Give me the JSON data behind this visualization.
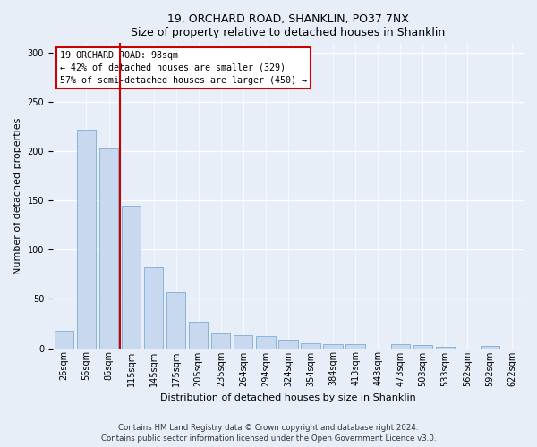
{
  "title1": "19, ORCHARD ROAD, SHANKLIN, PO37 7NX",
  "title2": "Size of property relative to detached houses in Shanklin",
  "xlabel": "Distribution of detached houses by size in Shanklin",
  "ylabel": "Number of detached properties",
  "categories": [
    "26sqm",
    "56sqm",
    "86sqm",
    "115sqm",
    "145sqm",
    "175sqm",
    "205sqm",
    "235sqm",
    "264sqm",
    "294sqm",
    "324sqm",
    "354sqm",
    "384sqm",
    "413sqm",
    "443sqm",
    "473sqm",
    "503sqm",
    "533sqm",
    "562sqm",
    "592sqm",
    "622sqm"
  ],
  "values": [
    18,
    222,
    203,
    145,
    82,
    57,
    27,
    15,
    13,
    12,
    9,
    5,
    4,
    4,
    0,
    4,
    3,
    1,
    0,
    2,
    0
  ],
  "bar_color": "#c8d8ee",
  "bar_edge_color": "#7aadd4",
  "vline_x": 2.5,
  "annotation_line1": "19 ORCHARD ROAD: 98sqm",
  "annotation_line2": "← 42% of detached houses are smaller (329)",
  "annotation_line3": "57% of semi-detached houses are larger (450) →",
  "vline_color": "#cc0000",
  "ylim": [
    0,
    310
  ],
  "yticks": [
    0,
    50,
    100,
    150,
    200,
    250,
    300
  ],
  "footer_text": "Contains HM Land Registry data © Crown copyright and database right 2024.\nContains public sector information licensed under the Open Government Licence v3.0.",
  "bg_color": "#e8eef8",
  "grid_color": "#ffffff",
  "title_fontsize": 9,
  "ylabel_fontsize": 8,
  "xlabel_fontsize": 8,
  "tick_fontsize": 7
}
